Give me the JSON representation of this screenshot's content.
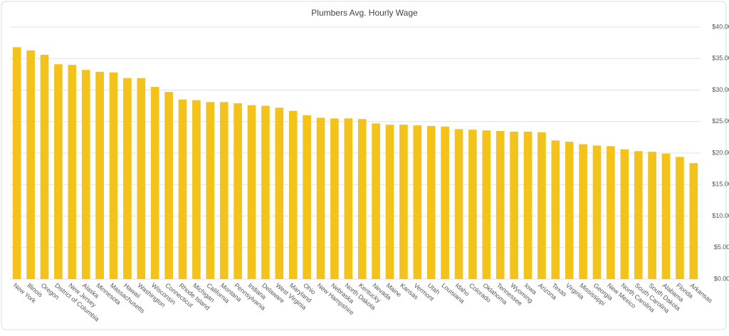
{
  "chart_data": {
    "type": "bar",
    "title": "Plumbers Avg. Hourly Wage",
    "categories": [
      "New York",
      "Illinois",
      "Oregon",
      "District of Columbia",
      "New Jersey",
      "Alaska",
      "Minnesota",
      "Massachusetts",
      "Hawaii",
      "Washington",
      "Wisconsin",
      "Connecticut",
      "Rhode Island",
      "Michigan",
      "California",
      "Montana",
      "Pennsylvania",
      "Indiana",
      "Delaware",
      "West Virginia",
      "Maryland",
      "Ohio",
      "New Hampshire",
      "Nebraska",
      "North Dakota",
      "Kentucky",
      "Nevada",
      "Maine",
      "Kansas",
      "Vermont",
      "Utah",
      "Louisiana",
      "Idaho",
      "Colorado",
      "Oklahoma",
      "Tennessee",
      "Wyoming",
      "Iowa",
      "Arizona",
      "Texas",
      "Virginia",
      "Mississippi",
      "Georgia",
      "New Mexico",
      "North Carolina",
      "South Carolina",
      "South Dakota",
      "Alabama",
      "Florida",
      "Arkansas"
    ],
    "values": [
      36.8,
      36.3,
      35.6,
      34.1,
      34.0,
      33.2,
      32.9,
      32.8,
      31.9,
      31.9,
      30.5,
      29.7,
      28.5,
      28.4,
      28.1,
      28.1,
      27.9,
      27.6,
      27.5,
      27.2,
      26.7,
      26.0,
      25.6,
      25.5,
      25.5,
      25.4,
      24.7,
      24.5,
      24.5,
      24.4,
      24.3,
      24.2,
      23.8,
      23.7,
      23.6,
      23.5,
      23.4,
      23.4,
      23.3,
      22.0,
      21.8,
      21.4,
      21.2,
      21.1,
      20.6,
      20.3,
      20.2,
      19.9,
      19.4,
      18.4
    ],
    "color": "#f3c31b",
    "ylim": [
      0,
      40
    ],
    "yticks": [
      {
        "value": 0,
        "label": "$0.00"
      },
      {
        "value": 5,
        "label": "$5.00"
      },
      {
        "value": 10,
        "label": "$10.00"
      },
      {
        "value": 15,
        "label": "$15.00"
      },
      {
        "value": 20,
        "label": "$20.00"
      },
      {
        "value": 25,
        "label": "$25.00"
      },
      {
        "value": 30,
        "label": "$30.00"
      },
      {
        "value": 35,
        "label": "$35.00"
      },
      {
        "value": 40,
        "label": "$40.00"
      }
    ],
    "grid": true
  }
}
